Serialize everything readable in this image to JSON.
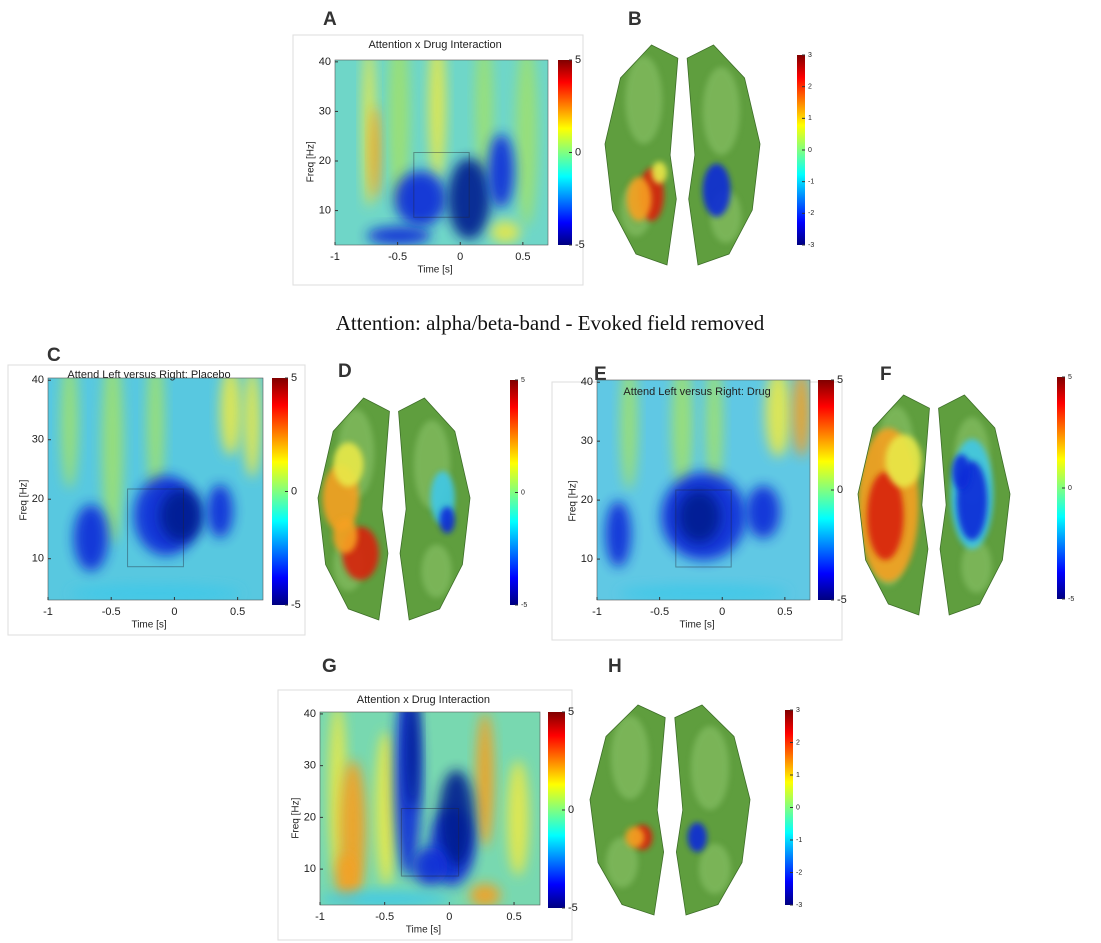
{
  "panels": [
    {
      "letter": "A",
      "title": "Attention x Drug Interaction",
      "y_label": "Freq [Hz]",
      "x_label": "Time [s]",
      "yticks": [
        40,
        30,
        20,
        10
      ],
      "xticks": [
        -1,
        -0.5,
        0,
        0.5
      ],
      "colorbar_ticks": [
        5,
        0,
        -5
      ]
    },
    {
      "letter": "B",
      "colorbar_ticks": [
        3,
        2,
        1,
        0,
        -1,
        -2,
        -3
      ]
    },
    {
      "letter": "C",
      "title": "Attend Left versus Right: Placebo",
      "y_label": "Freq [Hz]",
      "x_label": "Time [s]",
      "yticks": [
        40,
        30,
        20,
        10
      ],
      "xticks": [
        -1,
        -0.5,
        0,
        0.5
      ],
      "colorbar_ticks": [
        5,
        0,
        -5
      ]
    },
    {
      "letter": "D",
      "colorbar_ticks": [
        5,
        0,
        -5
      ]
    },
    {
      "letter": "E",
      "title": "Attend Left versus Right: Drug",
      "y_label": "Freq [Hz]",
      "x_label": "Time [s]",
      "yticks": [
        40,
        30,
        20,
        10
      ],
      "xticks": [
        -1,
        -0.5,
        0,
        0.5
      ],
      "colorbar_ticks": [
        5,
        0,
        -5
      ]
    },
    {
      "letter": "F",
      "colorbar_ticks": [
        5,
        0,
        -5
      ]
    },
    {
      "letter": "G",
      "title": "Attention x Drug Interaction",
      "y_label": "Freq [Hz]",
      "x_label": "Time [s]",
      "yticks": [
        40,
        30,
        20,
        10
      ],
      "xticks": [
        -1,
        -0.5,
        0,
        0.5
      ],
      "colorbar_ticks": [
        5,
        0,
        -5
      ]
    },
    {
      "letter": "H",
      "colorbar_ticks": [
        3,
        2,
        1,
        0,
        -1,
        -2,
        -3
      ]
    }
  ],
  "caption": "Attention: alpha/beta-band - Evoked field removed"
}
